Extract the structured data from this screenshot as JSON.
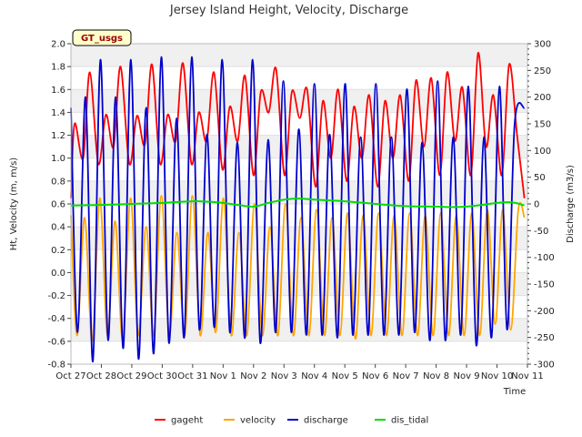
{
  "chart_data": {
    "type": "line",
    "title": "Jersey Island Height, Velocity, Discharge",
    "badge": "GT_usgs",
    "xlabel": "Time",
    "ylabel_left": "Ht, Velocity (m, m/s)",
    "ylabel_right": "Discharge (m3/s)",
    "ylim_left": [
      -0.8,
      2.0
    ],
    "ylim_right": [
      -300,
      300
    ],
    "xlim_days": [
      0,
      15
    ],
    "x_tick_labels": [
      "Oct 27",
      "Oct 28",
      "Oct 29",
      "Oct 30",
      "Oct 31",
      "Nov 1",
      "Nov 2",
      "Nov 3",
      "Nov 4",
      "Nov 5",
      "Nov 6",
      "Nov 7",
      "Nov 8",
      "Nov 9",
      "Nov 10",
      "Nov 11"
    ],
    "y_left_ticks": [
      "-0.8",
      "-0.6",
      "-0.4",
      "-0.2",
      "0.0",
      "0.2",
      "0.4",
      "0.6",
      "0.8",
      "1.0",
      "1.2",
      "1.4",
      "1.6",
      "1.8",
      "2.0"
    ],
    "y_right_ticks": [
      "-300",
      "-250",
      "-200",
      "-150",
      "-100",
      "-50",
      "0",
      "50",
      "100",
      "150",
      "200",
      "250",
      "300"
    ],
    "series": [
      {
        "name": "gageht",
        "axis": "left",
        "color": "#ff0000",
        "x": [
          0.0,
          0.12,
          0.4,
          0.62,
          0.9,
          1.15,
          1.4,
          1.63,
          1.92,
          2.17,
          2.43,
          2.66,
          2.93,
          3.18,
          3.44,
          3.68,
          3.96,
          4.2,
          4.46,
          4.7,
          4.98,
          5.22,
          5.48,
          5.72,
          6.0,
          6.24,
          6.5,
          6.74,
          7.02,
          7.26,
          7.52,
          7.76,
          8.04,
          8.28,
          8.54,
          8.78,
          9.06,
          9.3,
          9.56,
          9.8,
          10.08,
          10.32,
          10.58,
          10.82,
          11.1,
          11.34,
          11.6,
          11.84,
          12.12,
          12.36,
          12.62,
          12.86,
          13.14,
          13.38,
          13.64,
          13.88,
          14.16,
          14.4,
          14.66,
          14.9
        ],
        "values": [
          0.65,
          1.3,
          1.0,
          1.75,
          0.95,
          1.38,
          1.1,
          1.8,
          0.95,
          1.37,
          1.12,
          1.82,
          0.95,
          1.38,
          1.15,
          1.83,
          0.95,
          1.4,
          1.15,
          1.75,
          0.9,
          1.45,
          1.15,
          1.72,
          0.85,
          1.58,
          1.4,
          1.78,
          0.85,
          1.58,
          1.35,
          1.6,
          0.75,
          1.5,
          1.0,
          1.6,
          0.8,
          1.45,
          1.0,
          1.55,
          0.75,
          1.5,
          1.0,
          1.55,
          0.8,
          1.68,
          1.1,
          1.7,
          0.85,
          1.75,
          1.15,
          1.62,
          0.85,
          1.92,
          1.1,
          1.55,
          0.85,
          1.82,
          1.2,
          0.65
        ]
      },
      {
        "name": "velocity",
        "axis": "left",
        "color": "#ffa500",
        "x": [
          0.0,
          0.2,
          0.45,
          0.7,
          0.95,
          1.2,
          1.45,
          1.7,
          1.96,
          2.21,
          2.47,
          2.72,
          2.97,
          3.23,
          3.48,
          3.74,
          3.99,
          4.25,
          4.5,
          4.76,
          5.01,
          5.27,
          5.52,
          5.78,
          6.03,
          6.29,
          6.54,
          6.8,
          7.05,
          7.31,
          7.56,
          7.82,
          8.07,
          8.33,
          8.58,
          8.84,
          9.09,
          9.35,
          9.6,
          9.86,
          10.11,
          10.37,
          10.62,
          10.88,
          11.13,
          11.39,
          11.64,
          11.9,
          12.15,
          12.41,
          12.66,
          12.92,
          13.17,
          13.43,
          13.68,
          13.94,
          14.19,
          14.45,
          14.7,
          14.9
        ],
        "values": [
          0.5,
          -0.55,
          0.48,
          -0.6,
          0.65,
          -0.55,
          0.45,
          -0.58,
          0.65,
          -0.55,
          0.4,
          -0.55,
          0.67,
          -0.55,
          0.35,
          -0.55,
          0.67,
          -0.55,
          0.35,
          -0.52,
          0.65,
          -0.55,
          0.35,
          -0.55,
          0.6,
          -0.55,
          0.4,
          -0.55,
          0.6,
          -0.55,
          0.48,
          -0.55,
          0.55,
          -0.55,
          0.48,
          -0.55,
          0.52,
          -0.58,
          0.5,
          -0.55,
          0.52,
          -0.55,
          0.5,
          -0.55,
          0.52,
          -0.55,
          0.5,
          -0.55,
          0.52,
          -0.55,
          0.5,
          -0.55,
          0.52,
          -0.55,
          0.55,
          -0.45,
          0.55,
          -0.5,
          0.55,
          0.48
        ]
      },
      {
        "name": "discharge",
        "axis": "right",
        "color": "#0000cc",
        "x": [
          0.0,
          0.22,
          0.48,
          0.72,
          0.97,
          1.22,
          1.47,
          1.72,
          1.97,
          2.22,
          2.47,
          2.72,
          2.97,
          3.22,
          3.47,
          3.72,
          3.97,
          4.22,
          4.47,
          4.72,
          4.97,
          5.22,
          5.47,
          5.72,
          5.97,
          6.22,
          6.48,
          6.73,
          6.98,
          7.24,
          7.49,
          7.74,
          8.0,
          8.25,
          8.5,
          8.76,
          9.01,
          9.26,
          9.52,
          9.77,
          10.02,
          10.28,
          10.53,
          10.78,
          11.04,
          11.29,
          11.54,
          11.8,
          12.05,
          12.3,
          12.56,
          12.81,
          13.06,
          13.32,
          13.57,
          13.82,
          14.08,
          14.33,
          14.58,
          14.9
        ],
        "values": [
          180,
          -240,
          200,
          -295,
          270,
          -255,
          200,
          -270,
          270,
          -290,
          180,
          -280,
          275,
          -260,
          160,
          -250,
          275,
          -235,
          130,
          -230,
          270,
          -240,
          115,
          -250,
          270,
          -260,
          120,
          -240,
          230,
          -240,
          140,
          -245,
          225,
          -245,
          130,
          -250,
          225,
          -245,
          125,
          -245,
          225,
          -245,
          125,
          -245,
          215,
          -240,
          115,
          -255,
          230,
          -255,
          125,
          -245,
          220,
          -265,
          125,
          -250,
          220,
          -235,
          150,
          180
        ]
      },
      {
        "name": "dis_tidal",
        "axis": "right",
        "color": "#00dd00",
        "x": [
          0,
          1,
          2,
          3,
          4,
          4.5,
          5,
          5.5,
          6,
          6.5,
          7,
          7.5,
          8,
          9,
          10,
          11,
          12,
          12.5,
          13,
          13.5,
          14,
          14.5,
          14.9
        ],
        "values": [
          -3,
          -2,
          0,
          2,
          5,
          4,
          2,
          -2,
          -5,
          2,
          8,
          10,
          8,
          5,
          0,
          -4,
          -5,
          -6,
          -5,
          -2,
          2,
          3,
          -3
        ]
      }
    ],
    "legend": {
      "position": "bottom",
      "entries": [
        "gageht",
        "velocity",
        "discharge",
        "dis_tidal"
      ]
    }
  }
}
